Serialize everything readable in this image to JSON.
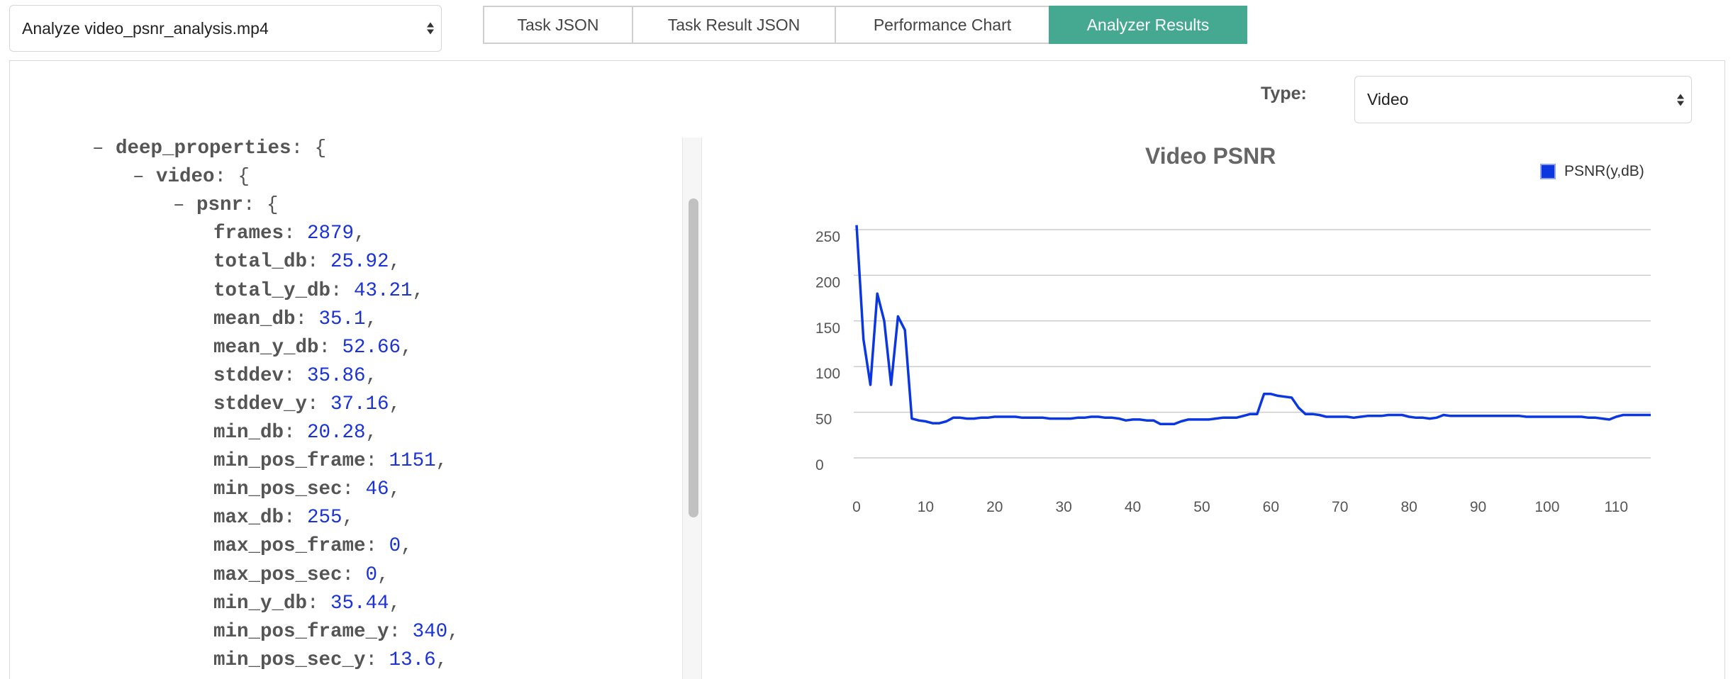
{
  "file_select": {
    "value": "Analyze video_psnr_analysis.mp4"
  },
  "tabs": [
    {
      "label": "Task JSON",
      "active": false
    },
    {
      "label": "Task Result JSON",
      "active": false
    },
    {
      "label": "Performance Chart",
      "active": false
    },
    {
      "label": "Analyzer Results",
      "active": true
    }
  ],
  "type_filter": {
    "label": "Type:",
    "value": "Video"
  },
  "json_tree": {
    "lines": [
      {
        "indent": 0,
        "prefix": "– ",
        "key": "deep_properties",
        "suffix": ": {",
        "value": ""
      },
      {
        "indent": 1,
        "prefix": "– ",
        "key": "video",
        "suffix": ": {",
        "value": ""
      },
      {
        "indent": 2,
        "prefix": "– ",
        "key": "psnr",
        "suffix": ": {",
        "value": ""
      },
      {
        "indent": 3,
        "prefix": "",
        "key": "frames",
        "suffix": ": ",
        "value": "2879"
      },
      {
        "indent": 3,
        "prefix": "",
        "key": "total_db",
        "suffix": ": ",
        "value": "25.92"
      },
      {
        "indent": 3,
        "prefix": "",
        "key": "total_y_db",
        "suffix": ": ",
        "value": "43.21"
      },
      {
        "indent": 3,
        "prefix": "",
        "key": "mean_db",
        "suffix": ": ",
        "value": "35.1"
      },
      {
        "indent": 3,
        "prefix": "",
        "key": "mean_y_db",
        "suffix": ": ",
        "value": "52.66"
      },
      {
        "indent": 3,
        "prefix": "",
        "key": "stddev",
        "suffix": ": ",
        "value": "35.86"
      },
      {
        "indent": 3,
        "prefix": "",
        "key": "stddev_y",
        "suffix": ": ",
        "value": "37.16"
      },
      {
        "indent": 3,
        "prefix": "",
        "key": "min_db",
        "suffix": ": ",
        "value": "20.28"
      },
      {
        "indent": 3,
        "prefix": "",
        "key": "min_pos_frame",
        "suffix": ": ",
        "value": "1151"
      },
      {
        "indent": 3,
        "prefix": "",
        "key": "min_pos_sec",
        "suffix": ": ",
        "value": "46"
      },
      {
        "indent": 3,
        "prefix": "",
        "key": "max_db",
        "suffix": ": ",
        "value": "255"
      },
      {
        "indent": 3,
        "prefix": "",
        "key": "max_pos_frame",
        "suffix": ": ",
        "value": "0"
      },
      {
        "indent": 3,
        "prefix": "",
        "key": "max_pos_sec",
        "suffix": ": ",
        "value": "0"
      },
      {
        "indent": 3,
        "prefix": "",
        "key": "min_y_db",
        "suffix": ": ",
        "value": "35.44"
      },
      {
        "indent": 3,
        "prefix": "",
        "key": "min_pos_frame_y",
        "suffix": ": ",
        "value": "340"
      },
      {
        "indent": 3,
        "prefix": "",
        "key": "min_pos_sec_y",
        "suffix": ": ",
        "value": "13.6"
      }
    ]
  },
  "colors": {
    "accent": "#45a890",
    "series": "#0a37e0",
    "json_value": "#1b33d6"
  },
  "chart_data": {
    "type": "line",
    "title": "Video PSNR",
    "xlabel": "",
    "ylabel": "",
    "xlim": [
      0,
      115
    ],
    "ylim": [
      0,
      250
    ],
    "x_ticks": [
      0,
      10,
      20,
      30,
      40,
      50,
      60,
      70,
      80,
      90,
      100,
      110
    ],
    "y_ticks": [
      0,
      50,
      100,
      150,
      200,
      250
    ],
    "grid": true,
    "legend_position": "top-right",
    "series": [
      {
        "name": "PSNR(y,dB)",
        "x": [
          0,
          1,
          2,
          3,
          4,
          5,
          6,
          7,
          8,
          9,
          10,
          11,
          12,
          13,
          14,
          15,
          16,
          17,
          18,
          19,
          20,
          21,
          22,
          23,
          24,
          25,
          26,
          27,
          28,
          29,
          30,
          31,
          32,
          33,
          34,
          35,
          36,
          37,
          38,
          39,
          40,
          41,
          42,
          43,
          44,
          45,
          46,
          47,
          48,
          49,
          50,
          51,
          52,
          53,
          54,
          55,
          56,
          57,
          58,
          59,
          60,
          61,
          62,
          63,
          64,
          65,
          66,
          67,
          68,
          69,
          70,
          71,
          72,
          73,
          74,
          75,
          76,
          77,
          78,
          79,
          80,
          81,
          82,
          83,
          84,
          85,
          86,
          87,
          88,
          89,
          90,
          91,
          92,
          93,
          94,
          95,
          96,
          97,
          98,
          99,
          100,
          101,
          102,
          103,
          104,
          105,
          106,
          107,
          108,
          109,
          110,
          111,
          112,
          113,
          114,
          115
        ],
        "values": [
          255,
          130,
          80,
          180,
          150,
          80,
          155,
          140,
          43,
          41,
          40,
          38,
          38,
          40,
          44,
          44,
          43,
          43,
          44,
          44,
          45,
          45,
          45,
          45,
          44,
          44,
          44,
          44,
          43,
          43,
          43,
          43,
          44,
          44,
          45,
          45,
          44,
          44,
          43,
          41,
          42,
          42,
          41,
          41,
          37,
          37,
          37,
          40,
          42,
          42,
          42,
          42,
          43,
          44,
          44,
          44,
          46,
          48,
          48,
          70,
          70,
          68,
          67,
          66,
          55,
          48,
          48,
          47,
          45,
          45,
          45,
          45,
          44,
          45,
          46,
          46,
          46,
          47,
          47,
          47,
          45,
          44,
          44,
          43,
          44,
          47,
          46,
          46,
          46,
          46,
          46,
          46,
          46,
          46,
          46,
          46,
          46,
          45,
          45,
          45,
          45,
          45,
          45,
          45,
          45,
          45,
          44,
          44,
          43,
          42,
          45,
          47,
          47,
          47,
          47,
          47
        ]
      }
    ]
  }
}
